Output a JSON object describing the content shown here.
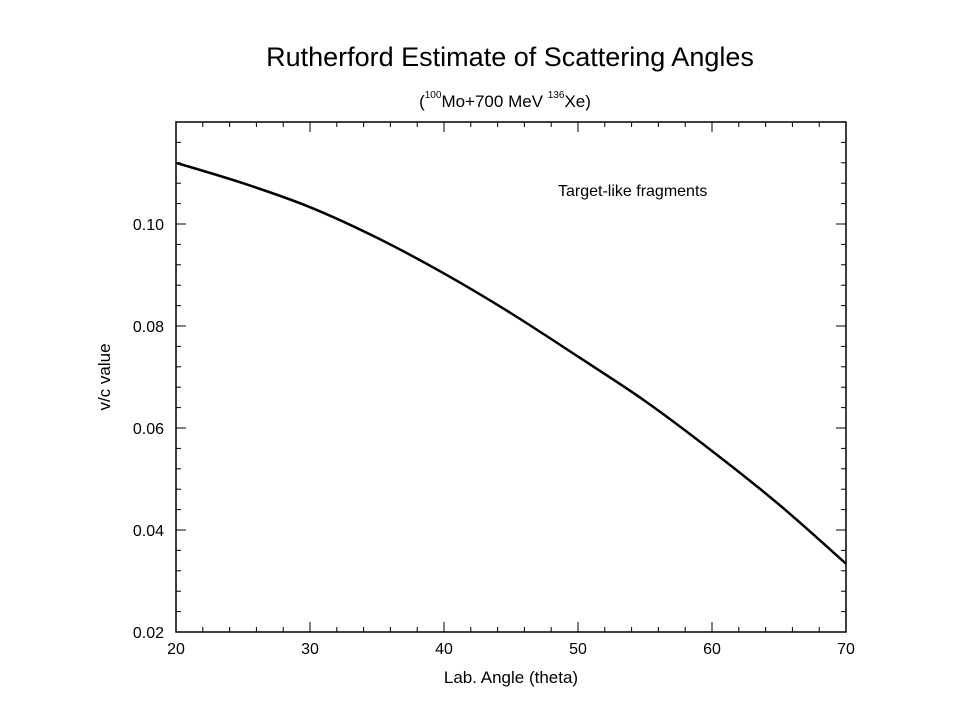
{
  "chart_data": {
    "type": "line",
    "title": "Rutherford Estimate of Scattering Angles",
    "subtitle": {
      "open": "(",
      "sup1": "100",
      "mid": "Mo+700 MeV ",
      "sup2": "136",
      "end": "Xe)"
    },
    "xlabel": "Lab. Angle (theta)",
    "ylabel": "v/c value",
    "xlim": [
      20,
      70
    ],
    "ylim": [
      0.02,
      0.12
    ],
    "x_ticks": [
      "20",
      "30",
      "40",
      "50",
      "60",
      "70"
    ],
    "y_ticks": [
      "0.02",
      "0.04",
      "0.06",
      "0.08",
      "0.10"
    ],
    "annotation": "Target-like fragments",
    "grid": false,
    "series": [
      {
        "color": "#000000",
        "x": [
          20,
          25,
          30,
          35,
          40,
          45,
          50,
          55,
          60,
          65,
          70
        ],
        "y": [
          0.112,
          0.108,
          0.1033,
          0.0973,
          0.0903,
          0.0825,
          0.074,
          0.0653,
          0.0555,
          0.045,
          0.0334
        ]
      }
    ]
  }
}
